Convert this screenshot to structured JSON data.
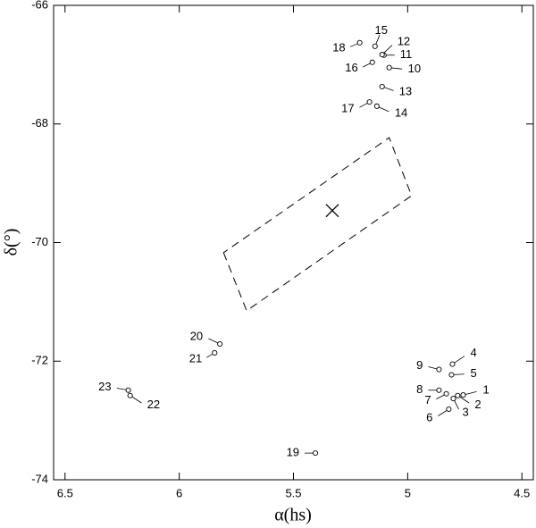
{
  "chart_data": {
    "type": "scatter",
    "x_label": "α(hs)",
    "y_label": "δ(°)",
    "xlim": [
      6.55,
      4.45
    ],
    "ylim": [
      -74,
      -66
    ],
    "xticks": [
      6.5,
      6,
      5.5,
      5,
      4.5
    ],
    "yticks": [
      -74,
      -72,
      -70,
      -68,
      -66
    ],
    "labels": [
      "1",
      "2",
      "3",
      "4",
      "5",
      "6",
      "7",
      "8",
      "9",
      "10",
      "11",
      "12",
      "13",
      "14",
      "15",
      "16",
      "17",
      "18",
      "19",
      "20",
      "21",
      "22",
      "23"
    ],
    "x": [
      4.757,
      4.781,
      4.8,
      4.804,
      4.808,
      4.82,
      4.831,
      4.863,
      4.863,
      5.081,
      5.104,
      5.112,
      5.112,
      5.135,
      5.143,
      5.155,
      5.167,
      5.21,
      5.404,
      5.822,
      5.845,
      6.215,
      6.223
    ],
    "values": [
      -72.57,
      -72.58,
      -72.63,
      -72.05,
      -72.23,
      -72.81,
      -72.55,
      -72.49,
      -72.14,
      -67.05,
      -66.84,
      -66.83,
      -67.37,
      -67.7,
      -66.69,
      -66.96,
      -67.63,
      -66.63,
      -73.55,
      -71.71,
      -71.86,
      -72.58,
      -72.49
    ],
    "center": {
      "x": 5.33,
      "y": -69.46
    },
    "field": {
      "x": [
        5.806,
        5.705,
        4.983,
        5.081
      ],
      "y": [
        -70.17,
        -71.15,
        -69.21,
        -68.23
      ]
    }
  }
}
